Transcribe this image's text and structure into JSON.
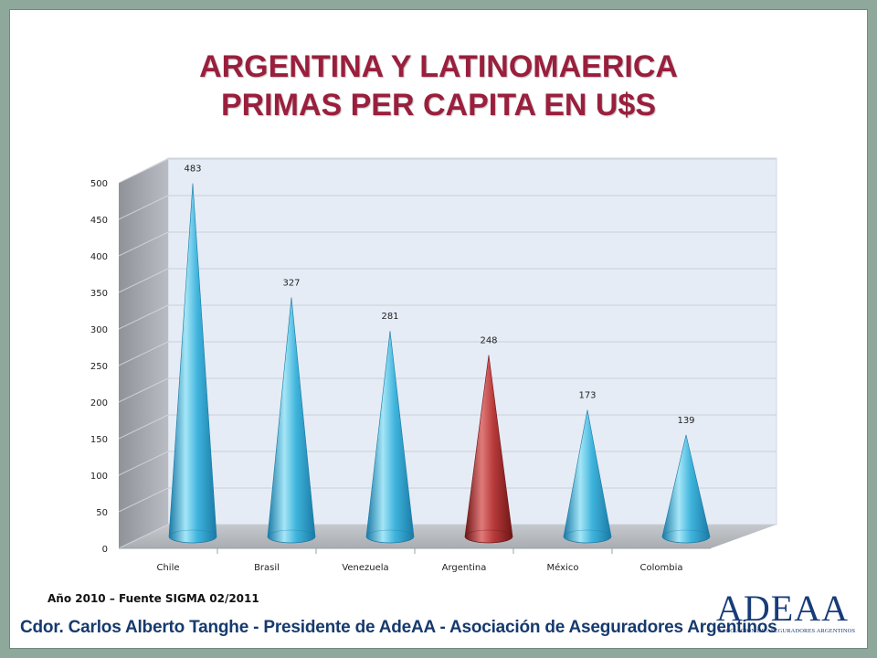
{
  "title": {
    "line1": "ARGENTINA Y LATINOMAERICA",
    "line2": "PRIMAS PER CAPITA EN U$S"
  },
  "colors": {
    "title": "#9a1f3d",
    "cone": "#3fb4dc",
    "cone_highlight": "#a5e6f7",
    "cone_dark": "#1a7aa6",
    "highlight_cone": "#b83a3a",
    "highlight_cone_light": "#e07a7a",
    "highlight_cone_dark": "#6e1616",
    "footer": "#163a6e"
  },
  "chart_data": {
    "type": "bar",
    "bar_shape": "cone-3d",
    "categories": [
      "Chile",
      "Brasil",
      "Venezuela",
      "Argentina",
      "México",
      "Colombia"
    ],
    "values": [
      483,
      327,
      281,
      248,
      173,
      139
    ],
    "data_labels": [
      "483",
      "327",
      "281",
      "248",
      "173",
      "139"
    ],
    "highlight_category": "Argentina",
    "y_ticks": [
      0,
      50,
      100,
      150,
      200,
      250,
      300,
      350,
      400,
      450,
      500
    ],
    "ylim": [
      0,
      500
    ],
    "grid": true,
    "legend": "none"
  },
  "source": "Año 2010 – Fuente SIGMA 02/2011",
  "footer": "Cdor. Carlos Alberto Tanghe - Presidente  de AdeAA - Asociación de Aseguradores Argentinos",
  "logo": {
    "main": "ADEAA",
    "sub": "ASOCIACION DE ASEGURADORES ARGENTINOS"
  }
}
